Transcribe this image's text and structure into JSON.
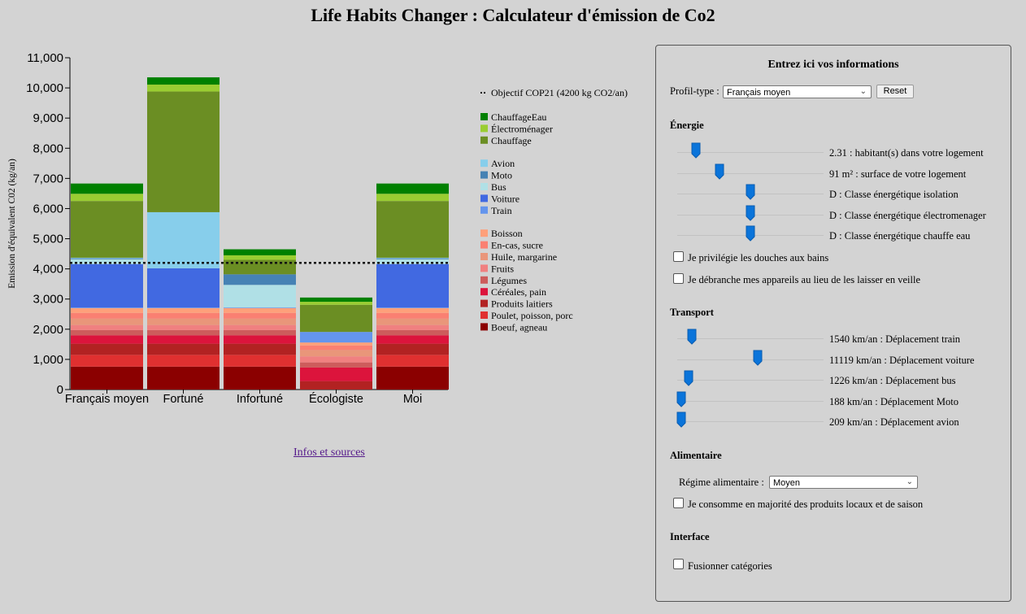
{
  "header": {
    "title": "Life Habits Changer : Calculateur d'émission de Co2"
  },
  "links": {
    "infos": "Infos et sources"
  },
  "colors": {
    "ChauffageEau": "#008000",
    "Electromenager": "#9acd32",
    "Chauffage": "#6b8e23",
    "Avion": "#87ceeb",
    "Moto": "#4682b4",
    "Bus": "#b0e0e6",
    "Voiture": "#4169e1",
    "Train": "#6495ed",
    "Boisson": "#ffa07a",
    "EnCas": "#fa8072",
    "Huile": "#e9967a",
    "Fruits": "#f08080",
    "Legumes": "#cd5c5c",
    "Cereales": "#dc143c",
    "Laitiers": "#b22222",
    "Poulet": "#e03030",
    "Boeuf": "#8b0000"
  },
  "chart_data": {
    "type": "bar",
    "stacked": true,
    "ylabel": "Emission d'équivalent C02 (kg/an)",
    "ylim": [
      0,
      11000
    ],
    "yticks": [
      "0",
      "1,000",
      "2,000",
      "3,000",
      "4,000",
      "5,000",
      "6,000",
      "7,000",
      "8,000",
      "9,000",
      "10,000",
      "11,000"
    ],
    "categories": [
      "Français moyen",
      "Fortuné",
      "Infortuné",
      "Écologiste",
      "Moi"
    ],
    "objective": {
      "label": "Objectif COP21 (4200 kg CO2/an)",
      "value": 4200
    },
    "legend_groups": [
      [
        {
          "key": "ChauffageEau",
          "label": "ChauffageEau"
        },
        {
          "key": "Electromenager",
          "label": "Électroménager"
        },
        {
          "key": "Chauffage",
          "label": "Chauffage"
        }
      ],
      [
        {
          "key": "Avion",
          "label": "Avion"
        },
        {
          "key": "Moto",
          "label": "Moto"
        },
        {
          "key": "Bus",
          "label": "Bus"
        },
        {
          "key": "Voiture",
          "label": "Voiture"
        },
        {
          "key": "Train",
          "label": "Train"
        }
      ],
      [
        {
          "key": "Boisson",
          "label": "Boisson"
        },
        {
          "key": "EnCas",
          "label": "En-cas, sucre"
        },
        {
          "key": "Huile",
          "label": "Huile, margarine"
        },
        {
          "key": "Fruits",
          "label": "Fruits"
        },
        {
          "key": "Legumes",
          "label": "Légumes"
        },
        {
          "key": "Cereales",
          "label": "Céréales, pain"
        },
        {
          "key": "Laitiers",
          "label": "Produits laitiers"
        },
        {
          "key": "Poulet",
          "label": "Poulet, poisson, porc"
        },
        {
          "key": "Boeuf",
          "label": "Boeuf, agneau"
        }
      ]
    ],
    "stack_order": [
      "Boeuf",
      "Poulet",
      "Laitiers",
      "Cereales",
      "Legumes",
      "Fruits",
      "Huile",
      "EnCas",
      "Boisson",
      "Train",
      "Voiture",
      "Bus",
      "Moto",
      "Avion",
      "Chauffage",
      "Electromenager",
      "ChauffageEau"
    ],
    "series": {
      "Français moyen": {
        "Boeuf": 760,
        "Poulet": 390,
        "Laitiers": 370,
        "Cereales": 280,
        "Legumes": 170,
        "Fruits": 170,
        "Huile": 210,
        "EnCas": 190,
        "Boisson": 160,
        "Train": 20,
        "Voiture": 1440,
        "Bus": 160,
        "Moto": 30,
        "Avion": 20,
        "Chauffage": 1880,
        "Electromenager": 240,
        "ChauffageEau": 340
      },
      "Fortuné": {
        "Boeuf": 760,
        "Poulet": 390,
        "Laitiers": 370,
        "Cereales": 280,
        "Legumes": 170,
        "Fruits": 170,
        "Huile": 210,
        "EnCas": 190,
        "Boisson": 160,
        "Train": 20,
        "Voiture": 1300,
        "Bus": 0,
        "Moto": 0,
        "Avion": 1860,
        "Chauffage": 4000,
        "Electromenager": 230,
        "ChauffageEau": 240
      },
      "Infortuné": {
        "Boeuf": 760,
        "Poulet": 390,
        "Laitiers": 370,
        "Cereales": 280,
        "Legumes": 170,
        "Fruits": 170,
        "Huile": 210,
        "EnCas": 190,
        "Boisson": 160,
        "Train": 20,
        "Voiture": 0,
        "Bus": 750,
        "Moto": 350,
        "Avion": 0,
        "Chauffage": 480,
        "Electromenager": 150,
        "ChauffageEau": 200
      },
      "Écologiste": {
        "Boeuf": 0,
        "Poulet": 0,
        "Laitiers": 280,
        "Cereales": 450,
        "Legumes": 170,
        "Fruits": 200,
        "Huile": 210,
        "EnCas": 150,
        "Boisson": 100,
        "Train": 350,
        "Voiture": 0,
        "Bus": 0,
        "Moto": 0,
        "Avion": 0,
        "Chauffage": 900,
        "Electromenager": 100,
        "ChauffageEau": 140
      },
      "Moi": {
        "Boeuf": 760,
        "Poulet": 390,
        "Laitiers": 370,
        "Cereales": 280,
        "Legumes": 170,
        "Fruits": 170,
        "Huile": 210,
        "EnCas": 190,
        "Boisson": 160,
        "Train": 20,
        "Voiture": 1440,
        "Bus": 160,
        "Moto": 30,
        "Avion": 20,
        "Chauffage": 1880,
        "Electromenager": 240,
        "ChauffageEau": 340
      }
    }
  },
  "panel": {
    "title": "Entrez ici vos informations",
    "profil_label": "Profil-type :",
    "profil_value": "Français moyen",
    "reset_label": "Reset",
    "energie": {
      "heading": "Énergie",
      "sliders": [
        {
          "label": "2.31 : habitant(s) dans votre logement",
          "fraction": 0.13
        },
        {
          "label": "91 m² : surface de votre logement",
          "fraction": 0.29
        },
        {
          "label": "D : Classe énergétique isolation",
          "fraction": 0.5
        },
        {
          "label": "D : Classe énergétique électromenager",
          "fraction": 0.5
        },
        {
          "label": "D : Classe énergétique chauffe eau",
          "fraction": 0.5
        }
      ],
      "douches_label": "Je privilégie les douches aux bains",
      "veille_label": "Je débranche mes appareils au lieu de les laisser en veille"
    },
    "transport": {
      "heading": "Transport",
      "sliders": [
        {
          "label": "1540 km/an : Déplacement train",
          "fraction": 0.1
        },
        {
          "label": "11119 km/an : Déplacement voiture",
          "fraction": 0.55
        },
        {
          "label": "1226 km/an : Déplacement bus",
          "fraction": 0.08
        },
        {
          "label": "188 km/an : Déplacement Moto",
          "fraction": 0.03
        },
        {
          "label": "209 km/an : Déplacement avion",
          "fraction": 0.03
        }
      ]
    },
    "alimentaire": {
      "heading": "Alimentaire",
      "regime_label": "Régime alimentaire :",
      "regime_value": "Moyen",
      "locaux_label": "Je consomme en majorité des produits locaux et de saison"
    },
    "interface": {
      "heading": "Interface",
      "fusion_label": "Fusionner catégories"
    }
  }
}
